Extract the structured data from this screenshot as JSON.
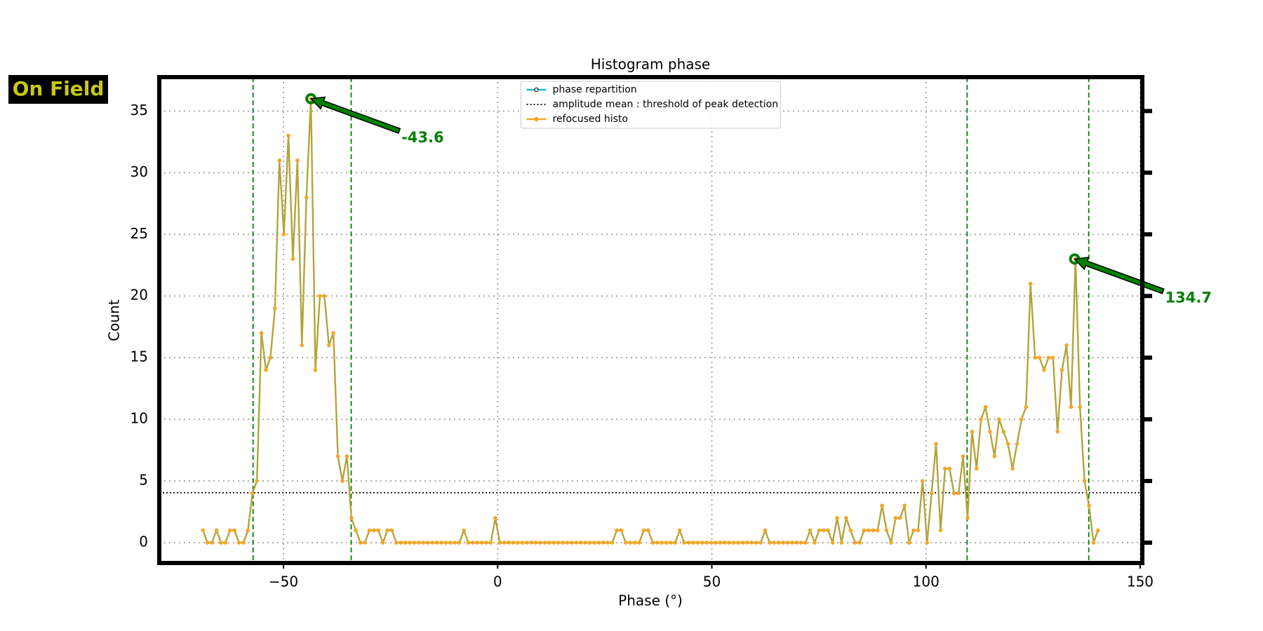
{
  "badge": "On Field",
  "chart_data": {
    "type": "line",
    "title": "Histogram phase",
    "x_label": "Phase (°)",
    "y_label": "Count",
    "xlim": [
      -79,
      150.5
    ],
    "ylim": [
      -1.65,
      37.75
    ],
    "xticks": [
      {
        "value": -50,
        "label": "−50"
      },
      0,
      50,
      100,
      150
    ],
    "yticks": [
      0,
      5,
      10,
      15,
      20,
      25,
      30,
      35
    ],
    "grid": true,
    "legend": "upper center",
    "x": [
      -68.8,
      -67.75,
      -66.7,
      -65.65,
      -64.6,
      -63.55,
      -62.5,
      -61.45,
      -60.4,
      -59.35,
      -58.3,
      -57.25,
      -56.2,
      -55.15,
      -54.1,
      -53.05,
      -52,
      -50.95,
      -49.9,
      -48.85,
      -47.8,
      -46.75,
      -45.7,
      -44.65,
      -43.6,
      -42.55,
      -41.5,
      -40.45,
      -39.4,
      -38.35,
      -37.3,
      -36.25,
      -35.2,
      -34.15,
      -33.1,
      -32.05,
      -31,
      -29.95,
      -28.9,
      -27.85,
      -26.8,
      -25.75,
      -24.7,
      -23.65,
      -22.6,
      -21.55,
      -20.5,
      -19.45,
      -18.4,
      -17.35,
      -16.3,
      -15.25,
      -14.2,
      -13.15,
      -12.1,
      -11.05,
      -10,
      -8.95,
      -7.9,
      -6.85,
      -5.8,
      -4.75,
      -3.7,
      -2.65,
      -1.6,
      -0.55,
      0.5,
      1.55,
      2.6,
      3.65,
      4.7,
      5.75,
      6.8,
      7.85,
      8.9,
      9.95,
      11,
      12.05,
      13.1,
      14.15,
      15.2,
      16.25,
      17.3,
      18.35,
      19.4,
      20.45,
      21.5,
      22.55,
      23.6,
      24.65,
      25.7,
      26.75,
      27.8,
      28.85,
      29.9,
      30.95,
      32,
      33.05,
      34.1,
      35.15,
      36.2,
      37.25,
      38.3,
      39.35,
      40.4,
      41.45,
      42.5,
      43.55,
      44.6,
      45.65,
      46.7,
      47.75,
      48.8,
      49.85,
      50.9,
      51.95,
      53,
      54.05,
      55.1,
      56.15,
      57.2,
      58.25,
      59.3,
      60.35,
      61.4,
      62.45,
      63.5,
      64.55,
      65.6,
      66.65,
      67.7,
      68.75,
      69.8,
      70.85,
      71.9,
      72.95,
      74,
      75.05,
      76.1,
      77.15,
      78.2,
      79.25,
      80.3,
      81.35,
      82.4,
      83.45,
      84.5,
      85.55,
      86.6,
      87.65,
      88.7,
      89.75,
      90.8,
      91.85,
      92.9,
      93.95,
      95,
      96.05,
      97.1,
      98.15,
      99.2,
      100.25,
      101.3,
      102.35,
      103.4,
      104.45,
      105.5,
      106.55,
      107.6,
      108.65,
      109.7,
      110.75,
      111.8,
      112.85,
      113.9,
      114.95,
      116,
      117.05,
      118.1,
      119.15,
      120.2,
      121.25,
      122.3,
      123.35,
      124.4,
      125.45,
      126.5,
      127.55,
      128.6,
      129.65,
      130.7,
      131.75,
      132.8,
      133.85,
      134.9,
      135.95,
      137,
      138.05,
      139.1,
      140.15
    ],
    "series": [
      {
        "name": "phase repartition",
        "color": "#17becf"
      },
      {
        "name": "refocused histo",
        "color": "#f5a623",
        "line_color": "#b3a43c",
        "values": [
          1,
          0,
          0,
          1,
          0,
          0,
          1,
          1,
          0,
          0,
          1,
          4,
          5,
          17,
          14,
          15,
          19,
          31,
          25,
          33,
          23,
          31,
          16,
          28,
          36,
          14,
          20,
          20,
          16,
          17,
          7,
          5,
          7,
          2,
          1,
          0,
          0,
          1,
          1,
          1,
          0,
          1,
          1,
          0,
          0,
          0,
          0,
          0,
          0,
          0,
          0,
          0,
          0,
          0,
          0,
          0,
          0,
          0,
          1,
          0,
          0,
          0,
          0,
          0,
          0,
          2,
          0,
          0,
          0,
          0,
          0,
          0,
          0,
          0,
          0,
          0,
          0,
          0,
          0,
          0,
          0,
          0,
          0,
          0,
          0,
          0,
          0,
          0,
          0,
          0,
          0,
          0,
          1,
          1,
          0,
          0,
          0,
          0,
          1,
          1,
          0,
          0,
          0,
          0,
          0,
          0,
          1,
          0,
          0,
          0,
          0,
          0,
          0,
          0,
          0,
          0,
          0,
          0,
          0,
          0,
          0,
          0,
          0,
          0,
          0,
          1,
          0,
          0,
          0,
          0,
          0,
          0,
          0,
          0,
          0,
          1,
          0,
          1,
          1,
          1,
          0,
          2,
          0,
          2,
          1,
          0,
          0,
          1,
          1,
          1,
          1,
          3,
          1,
          0,
          2,
          2,
          3,
          0,
          1,
          1,
          5,
          0,
          4,
          8,
          1,
          6,
          6,
          4,
          4,
          7,
          2,
          9,
          6,
          10,
          11,
          9,
          7,
          10,
          9,
          8,
          6,
          8,
          10,
          11,
          21,
          15,
          15,
          14,
          15,
          15,
          9,
          14,
          16,
          11,
          23,
          11,
          5,
          3,
          0,
          1
        ]
      }
    ],
    "threshold": {
      "name": "amplitude mean : threshold of peak detection",
      "value": 4.05,
      "color": "#000000"
    },
    "vlines": {
      "color": "#008000",
      "values": [
        -57.1,
        -34.2,
        109.6,
        138.0
      ]
    },
    "annotations": [
      {
        "text": "-43.6",
        "x": -43.6,
        "y": 36
      },
      {
        "text": "134.7",
        "x": 134.7,
        "y": 23
      }
    ],
    "annotation_color": "#008000"
  }
}
